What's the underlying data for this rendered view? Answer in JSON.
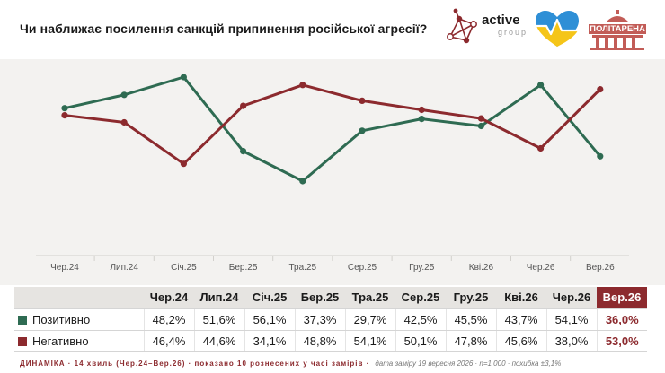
{
  "header": {
    "title": "Чи наближає посилення санкцій припинення російської агресії?",
    "logo_active_text": "active",
    "logo_active_sub": "group",
    "logo_pol_text": "ПОЛІТАРЕНА"
  },
  "colors": {
    "positive": "#2e6b52",
    "negative": "#8c2a2e",
    "highlight": "#8c2a2e",
    "heart_blue": "#2e8fd6",
    "heart_yellow": "#f5c518"
  },
  "chart_data": {
    "type": "line",
    "categories": [
      "Чер.24",
      "Лип.24",
      "Січ.25",
      "Бер.25",
      "Тра.25",
      "Сер.25",
      "Гру.25",
      "Кві.26",
      "Чер.26",
      "Вер.26"
    ],
    "series": [
      {
        "name": "Позитивно",
        "values": [
          48.2,
          51.6,
          56.1,
          37.3,
          29.7,
          42.5,
          45.5,
          43.7,
          54.1,
          36.0
        ]
      },
      {
        "name": "Негативно",
        "values": [
          46.4,
          44.6,
          34.1,
          48.8,
          54.1,
          50.1,
          47.8,
          45.6,
          38.0,
          53.0
        ]
      }
    ],
    "ylim": [
      0,
      60
    ],
    "grid": false,
    "legend": "table-below"
  },
  "table": {
    "rows": [
      {
        "label": "Позитивно",
        "values": [
          "48,2%",
          "51,6%",
          "56,1%",
          "37,3%",
          "29,7%",
          "42,5%",
          "45,5%",
          "43,7%",
          "54,1%",
          "36,0%"
        ]
      },
      {
        "label": "Негативно",
        "values": [
          "46,4%",
          "44,6%",
          "34,1%",
          "48,8%",
          "54,1%",
          "50,1%",
          "47,8%",
          "45,6%",
          "38,0%",
          "53,0%"
        ]
      }
    ]
  },
  "footer": {
    "main": "ДИНАМІКА · 14 хвиль (Чер.24–Вер.26) · показано 10 рознесених у часі замірів ·",
    "note": "дата заміру 19 вересня 2026 · n=1 000 · похибка ±3,1%"
  }
}
